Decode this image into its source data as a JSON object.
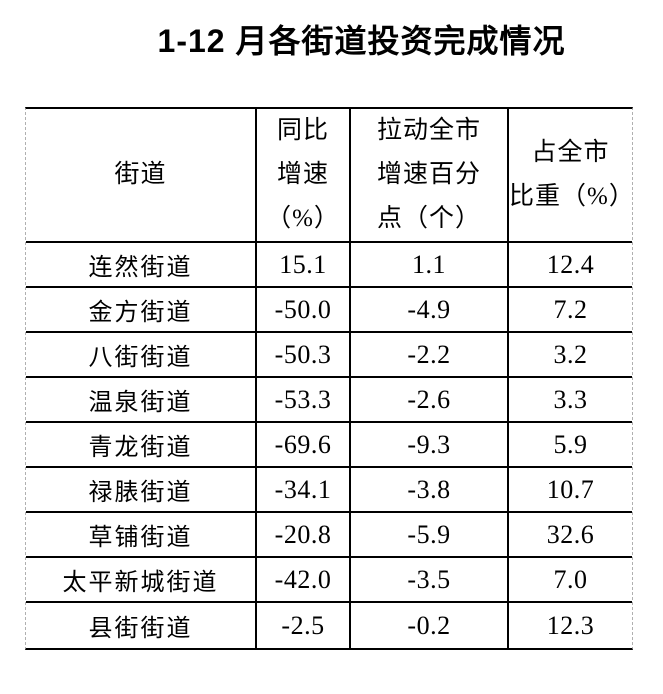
{
  "title": "1-12 月各街道投资完成情况",
  "table": {
    "columns": [
      {
        "label": "街道"
      },
      {
        "label": "同比\n增速\n（%）"
      },
      {
        "label": "拉动全市\n增速百分\n点（个）"
      },
      {
        "label": "占全市\n比重（%）"
      }
    ],
    "rows": [
      {
        "name": "连然街道",
        "yoy_growth_pct": "15.1",
        "contribution_points": "1.1",
        "city_share_pct": "12.4"
      },
      {
        "name": "金方街道",
        "yoy_growth_pct": "-50.0",
        "contribution_points": "-4.9",
        "city_share_pct": "7.2"
      },
      {
        "name": "八街街道",
        "yoy_growth_pct": "-50.3",
        "contribution_points": "-2.2",
        "city_share_pct": "3.2"
      },
      {
        "name": "温泉街道",
        "yoy_growth_pct": "-53.3",
        "contribution_points": "-2.6",
        "city_share_pct": "3.3"
      },
      {
        "name": "青龙街道",
        "yoy_growth_pct": "-69.6",
        "contribution_points": "-9.3",
        "city_share_pct": "5.9"
      },
      {
        "name": "禄脿街道",
        "yoy_growth_pct": "-34.1",
        "contribution_points": "-3.8",
        "city_share_pct": "10.7"
      },
      {
        "name": "草铺街道",
        "yoy_growth_pct": "-20.8",
        "contribution_points": "-5.9",
        "city_share_pct": "32.6"
      },
      {
        "name": "太平新城街道",
        "yoy_growth_pct": "-42.0",
        "contribution_points": "-3.5",
        "city_share_pct": "7.0"
      },
      {
        "name": "县街街道",
        "yoy_growth_pct": "-2.5",
        "contribution_points": "-0.2",
        "city_share_pct": "12.3"
      }
    ]
  },
  "colors": {
    "text": "#000000",
    "border_solid": "#000000",
    "border_gridline": "#b0b0b0",
    "background": "#ffffff"
  }
}
